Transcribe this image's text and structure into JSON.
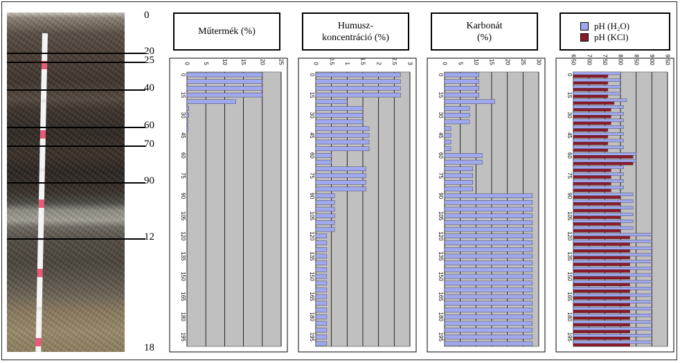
{
  "profile": {
    "depth_labels": [
      {
        "text": "0",
        "depth": 0
      },
      {
        "text": "20",
        "depth": 20
      },
      {
        "text": "25",
        "depth": 25
      },
      {
        "text": "40",
        "depth": 40
      },
      {
        "text": "60",
        "depth": 60
      },
      {
        "text": "70",
        "depth": 70
      },
      {
        "text": "90",
        "depth": 90
      },
      {
        "text": "12",
        "depth": 120
      },
      {
        "text": "18",
        "depth": 180
      }
    ],
    "horizon_depths": [
      20,
      25,
      40,
      60,
      70,
      90,
      120
    ]
  },
  "colors": {
    "bar": "#a0a8f0",
    "bar2": "#8a1a2a",
    "plot_bg": "#c0c0c0"
  },
  "chart_data": [
    {
      "type": "bar",
      "title_lines": [
        "Műtermék (%)"
      ],
      "xlim": [
        0,
        25
      ],
      "xticks": [
        "0",
        "5",
        "10",
        "15",
        "20",
        "25"
      ],
      "y": [
        0,
        5,
        10,
        15,
        20,
        25,
        30,
        35,
        40,
        45,
        50,
        55,
        60,
        65,
        70,
        75,
        80,
        85,
        90,
        95,
        100,
        105,
        110,
        115,
        120,
        125,
        130,
        135,
        140,
        145,
        150,
        155,
        160,
        165,
        170,
        175,
        180,
        185,
        190,
        195,
        200
      ],
      "yticks": [
        "0",
        "15",
        "30",
        "45",
        "60",
        "75",
        "90",
        "105",
        "120",
        "135",
        "150",
        "165",
        "180",
        "195"
      ],
      "series": [
        {
          "values": [
            20,
            20,
            20,
            20,
            13,
            0.5,
            0.5,
            0.3,
            0.3,
            0,
            0,
            0,
            0,
            0,
            0,
            0,
            0,
            0,
            0,
            0,
            0,
            0,
            0,
            0,
            0,
            0,
            0,
            0,
            0,
            0,
            0,
            0,
            0,
            0,
            0,
            0,
            0,
            0,
            0,
            0,
            0
          ]
        }
      ]
    },
    {
      "type": "bar",
      "title_lines": [
        "Humusz-",
        "koncentráció (%)"
      ],
      "xlim": [
        0,
        3
      ],
      "xticks": [
        "0",
        "0.5",
        "1",
        "1.5",
        "2",
        "2.5",
        "3"
      ],
      "y": [
        0,
        5,
        10,
        15,
        20,
        25,
        30,
        35,
        40,
        45,
        50,
        55,
        60,
        65,
        70,
        75,
        80,
        85,
        90,
        95,
        100,
        105,
        110,
        115,
        120,
        125,
        130,
        135,
        140,
        145,
        150,
        155,
        160,
        165,
        170,
        175,
        180,
        185,
        190,
        195,
        200
      ],
      "yticks": [
        "0",
        "15",
        "30",
        "45",
        "60",
        "75",
        "90",
        "105",
        "120",
        "135",
        "150",
        "165",
        "180",
        "195"
      ],
      "series": [
        {
          "values": [
            2.7,
            2.7,
            2.7,
            2.7,
            1.0,
            1.5,
            1.5,
            1.5,
            1.7,
            1.7,
            1.7,
            1.7,
            0.5,
            0.5,
            1.6,
            1.6,
            1.6,
            1.6,
            0.6,
            0.6,
            0.6,
            0.6,
            0.6,
            0.6,
            0.35,
            0.35,
            0.35,
            0.35,
            0.35,
            0.35,
            0.35,
            0.35,
            0.35,
            0.35,
            0.35,
            0.35,
            0.35,
            0.35,
            0.35,
            0.35,
            0.35
          ]
        }
      ]
    },
    {
      "type": "bar",
      "title_lines": [
        "Karbonát",
        "(%)"
      ],
      "xlim": [
        0,
        30
      ],
      "xticks": [
        "0",
        "5",
        "10",
        "15",
        "20",
        "25",
        "30"
      ],
      "y": [
        0,
        5,
        10,
        15,
        20,
        25,
        30,
        35,
        40,
        45,
        50,
        55,
        60,
        65,
        70,
        75,
        80,
        85,
        90,
        95,
        100,
        105,
        110,
        115,
        120,
        125,
        130,
        135,
        140,
        145,
        150,
        155,
        160,
        165,
        170,
        175,
        180,
        185,
        190,
        195,
        200
      ],
      "yticks": [
        "0",
        "15",
        "30",
        "45",
        "60",
        "75",
        "90",
        "105",
        "120",
        "135",
        "150",
        "165",
        "180",
        "195"
      ],
      "series": [
        {
          "values": [
            11,
            11,
            11,
            11,
            16,
            8,
            8,
            8,
            2,
            2,
            2,
            2,
            12,
            12,
            9,
            9,
            9,
            9,
            28,
            28,
            28,
            28,
            28,
            28,
            28,
            28,
            28,
            28,
            28,
            28,
            28,
            28,
            28,
            28,
            28,
            28,
            28,
            28,
            28,
            28,
            28
          ]
        }
      ]
    },
    {
      "type": "bar",
      "legend": [
        "pH (H₂O)",
        "pH (KCl)"
      ],
      "xlim": [
        6.5,
        9.5
      ],
      "xticks": [
        "6.50",
        "7.00",
        "7.50",
        "8.00",
        "8.50",
        "9.00",
        "9.50"
      ],
      "y": [
        0,
        5,
        10,
        15,
        20,
        25,
        30,
        35,
        40,
        45,
        50,
        55,
        60,
        65,
        70,
        75,
        80,
        85,
        90,
        95,
        100,
        105,
        110,
        115,
        120,
        125,
        130,
        135,
        140,
        145,
        150,
        155,
        160,
        165,
        170,
        175,
        180,
        185,
        190,
        195,
        200
      ],
      "yticks": [
        "0",
        "15",
        "30",
        "45",
        "60",
        "75",
        "90",
        "105",
        "120",
        "135",
        "150",
        "165",
        "180",
        "195"
      ],
      "series": [
        {
          "name": "pH (H₂O)",
          "values": [
            8.0,
            8.0,
            8.0,
            8.0,
            8.2,
            8.1,
            8.1,
            8.1,
            8.1,
            8.1,
            8.1,
            8.1,
            8.5,
            8.5,
            8.1,
            8.1,
            8.1,
            8.1,
            8.4,
            8.4,
            8.4,
            8.4,
            8.4,
            8.4,
            9.0,
            9.0,
            9.0,
            9.0,
            9.0,
            9.0,
            9.0,
            9.0,
            9.0,
            9.0,
            9.0,
            9.0,
            9.0,
            9.0,
            9.0,
            9.0,
            9.0
          ]
        },
        {
          "name": "pH (KCl)",
          "values": [
            7.6,
            7.6,
            7.6,
            7.6,
            7.8,
            7.7,
            7.7,
            7.7,
            7.6,
            7.6,
            7.6,
            7.6,
            8.4,
            8.4,
            7.7,
            7.7,
            7.7,
            7.7,
            8.0,
            8.0,
            8.0,
            8.0,
            8.0,
            8.0,
            8.3,
            8.3,
            8.3,
            8.3,
            8.3,
            8.3,
            8.3,
            8.3,
            8.3,
            8.3,
            8.3,
            8.3,
            8.3,
            8.3,
            8.3,
            8.3,
            8.3
          ]
        }
      ]
    }
  ]
}
